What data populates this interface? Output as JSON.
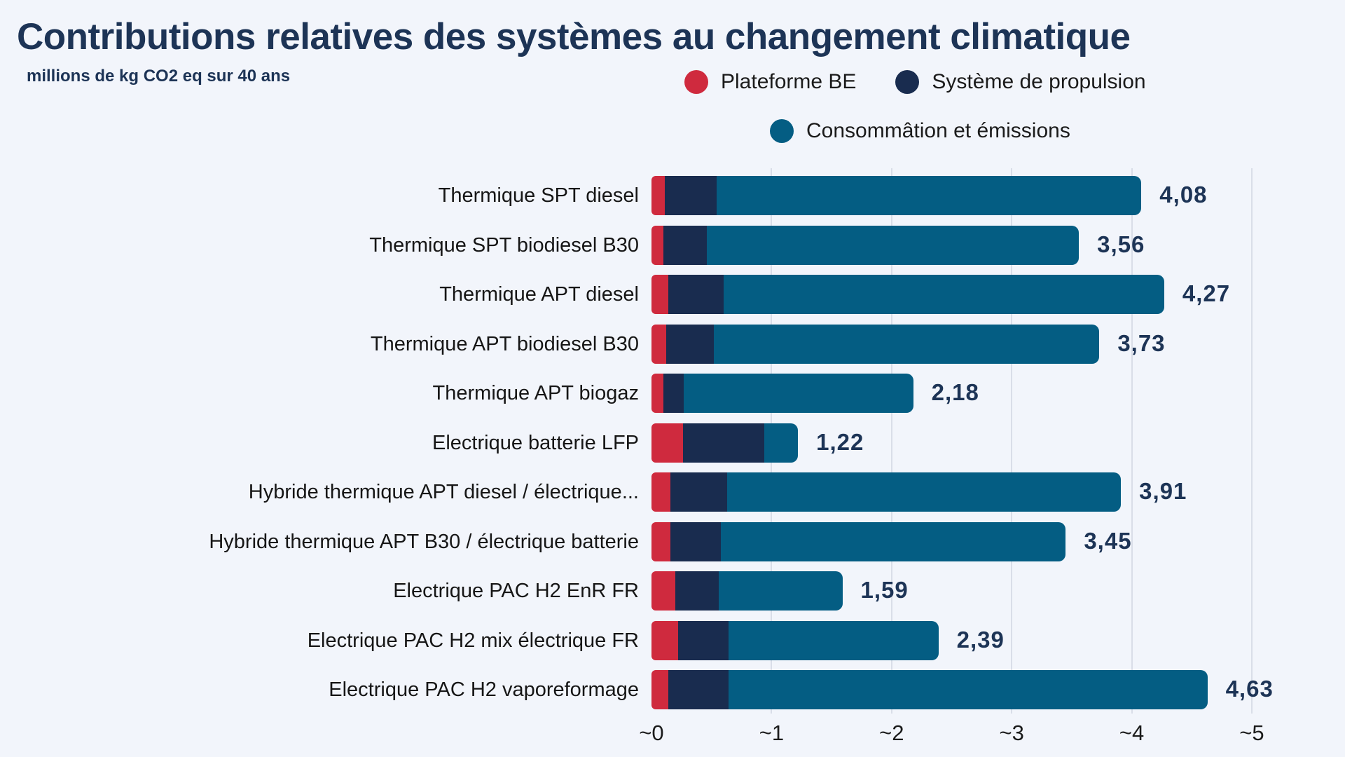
{
  "title": "Contributions relatives des systèmes au changement climatique",
  "subtitle": "millions de kg CO2 eq sur 40 ans",
  "colors": {
    "background": "#f2f5fb",
    "heading": "#1d3456",
    "grid_line": "#d9dee8",
    "category_text": "#161616",
    "plateforme_be": "#cf2a3e",
    "systeme_propulsion": "#192c4f",
    "consommation_emissions": "#045d83"
  },
  "legend_rows": [
    [
      {
        "label": "Plateforme BE",
        "color": "#cf2a3e"
      },
      {
        "label": "Système de propulsion",
        "color": "#192c4f"
      }
    ],
    [
      {
        "label": "Consommâtion et émissions",
        "color": "#045d83"
      }
    ]
  ],
  "chart_data": {
    "type": "bar",
    "orientation": "horizontal",
    "stacked": true,
    "title": "Contributions relatives des systèmes au changement climatique",
    "unit_label": "millions de kg CO2 eq sur 40 ans",
    "categories": [
      "Thermique SPT diesel",
      "Thermique SPT biodiesel B30",
      "Thermique APT diesel",
      "Thermique APT biodiesel B30",
      "Thermique APT biogaz",
      "Electrique batterie LFP",
      "Hybride thermique APT diesel / électrique...",
      "Hybride thermique APT B30 / électrique batterie",
      "Electrique PAC H2 EnR FR",
      "Electrique PAC H2 mix électrique FR",
      "Electrique PAC H2 vaporeformage"
    ],
    "series": [
      {
        "name": "Plateforme BE",
        "color": "#cf2a3e",
        "values": [
          0.11,
          0.1,
          0.14,
          0.12,
          0.1,
          0.26,
          0.16,
          0.16,
          0.2,
          0.22,
          0.14
        ]
      },
      {
        "name": "Système de propulsion",
        "color": "#192c4f",
        "values": [
          0.43,
          0.36,
          0.46,
          0.4,
          0.17,
          0.68,
          0.47,
          0.42,
          0.36,
          0.42,
          0.5
        ]
      },
      {
        "name": "Consommâtion et émissions",
        "color": "#045d83",
        "values": [
          3.54,
          3.1,
          3.67,
          3.21,
          1.91,
          0.28,
          3.28,
          2.87,
          1.03,
          1.75,
          3.99
        ]
      }
    ],
    "totals": [
      4.08,
      3.56,
      4.27,
      3.73,
      2.18,
      1.22,
      3.91,
      3.45,
      1.59,
      2.39,
      4.63
    ],
    "total_labels": [
      "4,08",
      "3,56",
      "4,27",
      "3,73",
      "2,18",
      "1,22",
      "3,91",
      "3,45",
      "1,59",
      "2,39",
      "4,63"
    ],
    "x_ticks": [
      "~0",
      "~1",
      "~2",
      "~3",
      "~4",
      "~5"
    ],
    "x_tick_values": [
      0,
      1,
      2,
      3,
      4,
      5
    ],
    "xlim": [
      0,
      5.08
    ],
    "grid": "vertical",
    "legend_position": "top"
  }
}
